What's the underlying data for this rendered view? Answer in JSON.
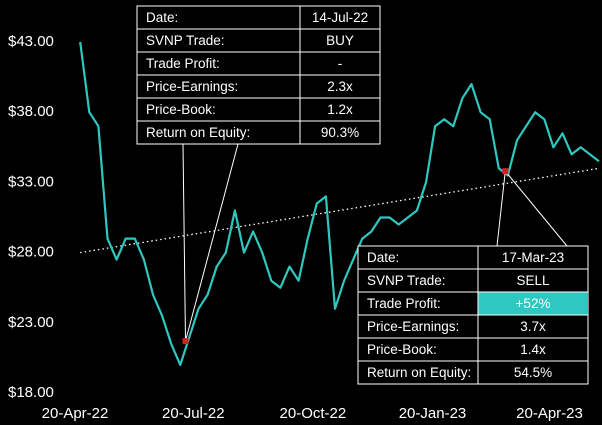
{
  "chart_data": {
    "type": "line",
    "x": [
      "24-Apr-22",
      "1-May-22",
      "8-May-22",
      "15-May-22",
      "22-May-22",
      "29-May-22",
      "5-Jun-22",
      "12-Jun-22",
      "19-Jun-22",
      "26-Jun-22",
      "3-Jul-22",
      "10-Jul-22",
      "17-Jul-22",
      "24-Jul-22",
      "31-Jul-22",
      "7-Aug-22",
      "14-Aug-22",
      "21-Aug-22",
      "28-Aug-22",
      "4-Sep-22",
      "11-Sep-22",
      "18-Sep-22",
      "25-Sep-22",
      "2-Oct-22",
      "9-Oct-22",
      "16-Oct-22",
      "23-Oct-22",
      "30-Oct-22",
      "6-Nov-22",
      "13-Nov-22",
      "20-Nov-22",
      "27-Nov-22",
      "4-Dec-22",
      "11-Dec-22",
      "18-Dec-22",
      "25-Dec-22",
      "1-Jan-23",
      "8-Jan-23",
      "15-Jan-23",
      "22-Jan-23",
      "29-Jan-23",
      "5-Feb-23",
      "12-Feb-23",
      "19-Feb-23",
      "26-Feb-23",
      "5-Mar-23",
      "12-Mar-23",
      "19-Mar-23",
      "26-Mar-23",
      "2-Apr-23",
      "9-Apr-23",
      "16-Apr-23",
      "23-Apr-23",
      "30-Apr-23",
      "7-May-23",
      "14-May-23",
      "21-May-23",
      "28-May-23"
    ],
    "series": [
      {
        "color": "#2ec8c0",
        "values": [
          43,
          38,
          37,
          29,
          27.5,
          29,
          29,
          27.5,
          25,
          23.5,
          21.5,
          20,
          22,
          24,
          25,
          27,
          28,
          31,
          28,
          29.5,
          28,
          26,
          25.5,
          27,
          26,
          29,
          31.5,
          32,
          24,
          26,
          27.5,
          29,
          29.5,
          30.5,
          30.5,
          30,
          30.5,
          31,
          33,
          37,
          37.5,
          37,
          39,
          40,
          38,
          37.5,
          34,
          33.5,
          36,
          37,
          38,
          37.5,
          35.5,
          36.5,
          35,
          35.5,
          35,
          34.5
        ]
      }
    ],
    "trendline": {
      "x": [
        "24-Apr-22",
        "28-May-23"
      ],
      "values": [
        28,
        34
      ],
      "color": "#ffffff"
    },
    "xlim": [
      "20-Apr-22",
      "30-May-23"
    ],
    "xticks": [
      "20-Apr-22",
      "20-Jul-22",
      "20-Oct-22",
      "20-Jan-23",
      "20-Apr-23"
    ],
    "ylim": [
      18,
      43
    ],
    "yticks": [
      {
        "value": 18,
        "label": "$18.00"
      },
      {
        "value": 23,
        "label": "$23.00"
      },
      {
        "value": 28,
        "label": "$28.00"
      },
      {
        "value": 33,
        "label": "$33.00"
      },
      {
        "value": 38,
        "label": "$38.00"
      },
      {
        "value": 43,
        "label": "$43.00"
      }
    ],
    "marker_color": "#d62020",
    "highlight_color": "#2ec8c0",
    "annotations": [
      {
        "price": 21.7,
        "rows": [
          [
            "Date:",
            "14-Jul-22"
          ],
          [
            "SVNP Trade:",
            "BUY"
          ],
          [
            "Trade Profit:",
            "-"
          ],
          [
            "Price-Earnings:",
            "2.3x"
          ],
          [
            "Price-Book:",
            "1.2x"
          ],
          [
            "Return on Equity:",
            "90.3%"
          ]
        ]
      },
      {
        "price": 33.8,
        "highlight_row": 2,
        "rows": [
          [
            "Date:",
            "17-Mar-23"
          ],
          [
            "SVNP Trade:",
            "SELL"
          ],
          [
            "Trade Profit:",
            "+52%"
          ],
          [
            "Price-Earnings:",
            "3.7x"
          ],
          [
            "Price-Book:",
            "1.4x"
          ],
          [
            "Return on Equity:",
            "54.5%"
          ]
        ]
      }
    ]
  }
}
